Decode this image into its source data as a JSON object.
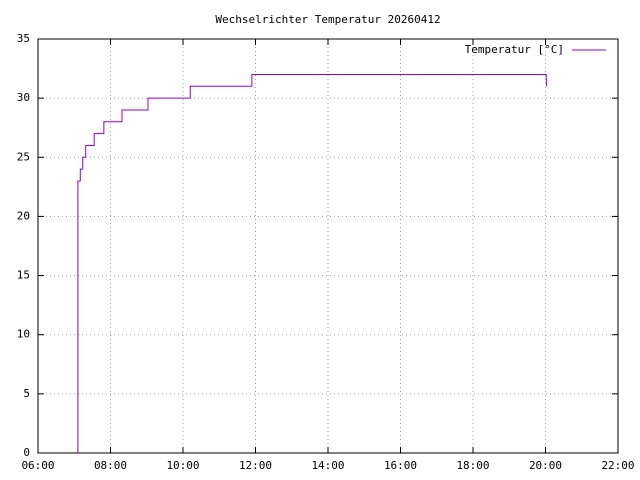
{
  "chart_data": {
    "type": "line",
    "title": "Wechselrichter Temperatur 20260412",
    "series": [
      {
        "name": "Temperatur [°C]",
        "color": "#9400d3",
        "x": [
          "07:06",
          "07:06",
          "07:10",
          "07:10",
          "07:14",
          "07:14",
          "07:19",
          "07:19",
          "07:33",
          "07:33",
          "07:49",
          "07:49",
          "08:19",
          "08:19",
          "09:02",
          "09:02",
          "10:12",
          "10:12",
          "11:54",
          "11:54",
          "20:01",
          "20:02"
        ],
        "values": [
          0,
          23,
          23,
          24,
          24,
          25,
          25,
          26,
          26,
          27,
          27,
          28,
          28,
          29,
          29,
          30,
          30,
          31,
          31,
          32,
          32,
          31
        ]
      }
    ],
    "xlim": [
      "06:00",
      "22:00"
    ],
    "xticks": [
      "06:00",
      "08:00",
      "10:00",
      "12:00",
      "14:00",
      "16:00",
      "18:00",
      "20:00",
      "22:00"
    ],
    "ylim": [
      0,
      35
    ],
    "yticks": [
      0,
      5,
      10,
      15,
      20,
      25,
      30,
      35
    ],
    "grid": true,
    "legend": "top-right"
  }
}
